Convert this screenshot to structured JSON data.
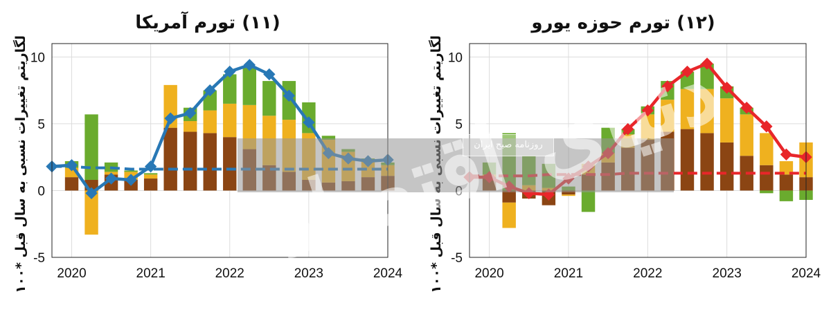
{
  "chart_data": [
    {
      "type": "bar+line",
      "title": "(۱۱) تورم آمریکا",
      "ylabel": "لگاریتم تغییرات نسبی به سال قبل *۱۰۰",
      "xlabel": "",
      "xlim": [
        2019.75,
        2024.0
      ],
      "ylim": [
        -5,
        11
      ],
      "xticks": [
        "2020",
        "2021",
        "2022",
        "2023",
        "2024"
      ],
      "yticks": [
        "-5",
        "0",
        "5",
        "10"
      ],
      "grid": true,
      "x": [
        2019.75,
        2020.0,
        2020.25,
        2020.5,
        2020.75,
        2021.0,
        2021.25,
        2021.5,
        2021.75,
        2022.0,
        2022.25,
        2022.5,
        2022.75,
        2023.0,
        2023.25,
        2023.5,
        2023.75,
        2024.0
      ],
      "stacked_bars": {
        "x": [
          2020.0,
          2020.25,
          2020.5,
          2020.75,
          2021.0,
          2021.25,
          2021.5,
          2021.75,
          2022.0,
          2022.25,
          2022.5,
          2022.75,
          2023.0,
          2023.25,
          2023.5,
          2023.75,
          2024.0
        ],
        "series": [
          {
            "color": "#8B4513",
            "values": [
              1.0,
              0.8,
              1.2,
              0.8,
              0.9,
              4.7,
              4.4,
              4.3,
              4.0,
              3.1,
              1.9,
              1.4,
              0.8,
              0.6,
              0.7,
              1.0,
              1.1
            ]
          },
          {
            "color": "#EFB11F",
            "values": [
              0.7,
              -3.3,
              0.2,
              0.6,
              0.3,
              3.2,
              0.8,
              1.7,
              2.5,
              3.3,
              3.7,
              3.9,
              3.5,
              3.2,
              2.2,
              1.2,
              0.8
            ]
          },
          {
            "color": "#6AAB2E",
            "values": [
              0.5,
              4.9,
              0.7,
              0.1,
              0.1,
              0.0,
              1.0,
              1.5,
              2.2,
              2.8,
              2.6,
              2.9,
              2.3,
              0.3,
              0.2,
              0.2,
              0.2
            ]
          }
        ]
      },
      "line": {
        "color": "#2878B5",
        "values": [
          1.8,
          1.9,
          -0.2,
          0.9,
          0.8,
          1.8,
          5.4,
          5.8,
          7.5,
          8.9,
          9.4,
          8.7,
          7.1,
          5.1,
          2.8,
          2.4,
          2.2,
          2.3
        ]
      },
      "baseline": {
        "color": "#2878B5",
        "style": "dashed",
        "values": [
          1.8,
          1.8,
          1.7,
          1.7,
          1.6,
          1.6,
          1.6,
          1.6,
          1.6,
          1.6,
          1.6,
          1.6,
          1.6,
          1.6,
          1.6,
          1.6,
          1.6,
          1.6
        ]
      }
    },
    {
      "type": "bar+line",
      "title": "(۱۲) تورم حوزه یورو",
      "ylabel": "لگاریتم تغییرات نسبی به سال قبل *۱۰۰",
      "xlabel": "",
      "xlim": [
        2019.75,
        2024.0
      ],
      "ylim": [
        -5,
        11
      ],
      "xticks": [
        "2020",
        "2021",
        "2022",
        "2023",
        "2024"
      ],
      "yticks": [
        "-5",
        "0",
        "5",
        "10"
      ],
      "grid": true,
      "x": [
        2019.75,
        2020.0,
        2020.25,
        2020.5,
        2020.75,
        2021.0,
        2021.25,
        2021.5,
        2021.75,
        2022.0,
        2022.25,
        2022.5,
        2022.75,
        2023.0,
        2023.25,
        2023.5,
        2023.75,
        2024.0
      ],
      "stacked_bars": {
        "x": [
          2020.0,
          2020.25,
          2020.5,
          2020.75,
          2021.0,
          2021.25,
          2021.5,
          2021.75,
          2022.0,
          2022.25,
          2022.5,
          2022.75,
          2023.0,
          2023.25,
          2023.5,
          2023.75,
          2024.0
        ],
        "series": [
          {
            "color": "#8B4513",
            "values": [
              1.0,
              -0.9,
              -0.6,
              -1.1,
              -0.3,
              1.2,
              2.1,
              3.2,
              3.8,
              4.4,
              4.6,
              4.3,
              3.6,
              2.6,
              1.9,
              1.2,
              1.0
            ]
          },
          {
            "color": "#EFB11F",
            "values": [
              0.2,
              -1.9,
              0.4,
              0.2,
              -0.1,
              0.8,
              0.7,
              1.0,
              1.9,
              2.4,
              3.0,
              3.3,
              3.3,
              3.1,
              2.4,
              1.0,
              2.6
            ]
          },
          {
            "color": "#6AAB2E",
            "values": [
              0.9,
              4.3,
              2.2,
              1.8,
              0.3,
              -1.6,
              1.9,
              0.4,
              0.6,
              1.4,
              1.3,
              1.9,
              0.9,
              0.5,
              -0.2,
              -0.8,
              -0.7
            ]
          }
        ]
      },
      "line": {
        "color": "#E8262A",
        "values": [
          1.0,
          1.0,
          0.3,
          -0.2,
          -0.3,
          0.9,
          1.8,
          2.8,
          4.6,
          6.0,
          7.8,
          8.9,
          9.5,
          7.7,
          6.2,
          4.8,
          2.7,
          2.5
        ]
      },
      "baseline": {
        "color": "#E8262A",
        "style": "dashed",
        "values": [
          1.1,
          1.1,
          1.1,
          1.1,
          1.2,
          1.2,
          1.2,
          1.2,
          1.3,
          1.3,
          1.3,
          1.3,
          1.3,
          1.3,
          1.3,
          1.3,
          1.3,
          1.3
        ]
      }
    }
  ],
  "watermark": {
    "logo_text": "روزنامه صبح ایران",
    "big_text": "دنیای اقتصاد"
  }
}
